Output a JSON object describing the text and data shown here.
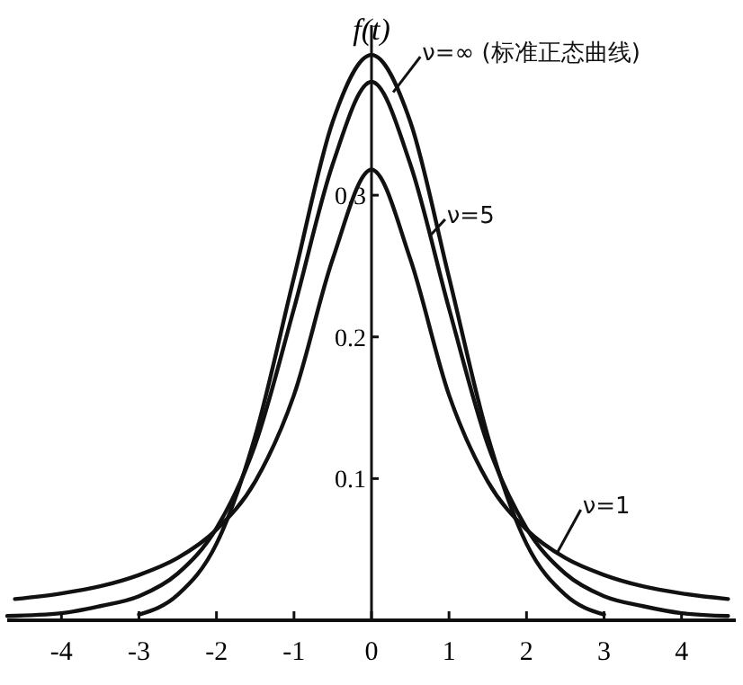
{
  "chart_data": {
    "type": "line",
    "ylabel": "f(t)",
    "xlim": [
      -4.7,
      4.7
    ],
    "ylim": [
      0,
      0.42
    ],
    "xticks": [
      -4,
      -3,
      -2,
      -1,
      0,
      1,
      2,
      3,
      4
    ],
    "yticks": [
      {
        "value": 0.1,
        "label": "0.1"
      },
      {
        "value": 0.2,
        "label": "0.2"
      },
      {
        "value": 0.3,
        "label": "0.3"
      }
    ],
    "grid": false,
    "marker": "none",
    "line_style": "solid",
    "series": [
      {
        "name": "ν=∞ (标准正态曲线)",
        "color": "#111111",
        "x": [
          -3,
          -2.5,
          -2,
          -1.5,
          -1,
          -0.5,
          0,
          0.5,
          1,
          1.5,
          2,
          2.5,
          3
        ],
        "values": [
          0.004,
          0.018,
          0.054,
          0.13,
          0.242,
          0.352,
          0.399,
          0.352,
          0.242,
          0.13,
          0.054,
          0.018,
          0.004
        ]
      },
      {
        "name": "ν=5",
        "color": "#111111",
        "x": [
          -4.7,
          -4,
          -3.5,
          -3,
          -2.5,
          -2,
          -1.5,
          -1,
          -0.5,
          0,
          0.5,
          1,
          1.5,
          2,
          2.5,
          3,
          3.5,
          4,
          4.6
        ],
        "values": [
          0.003,
          0.005,
          0.01,
          0.017,
          0.033,
          0.065,
          0.124,
          0.22,
          0.322,
          0.38,
          0.322,
          0.22,
          0.124,
          0.065,
          0.033,
          0.017,
          0.01,
          0.005,
          0.003
        ]
      },
      {
        "name": "ν=1",
        "color": "#111111",
        "x": [
          -4.6,
          -4,
          -3.5,
          -3,
          -2.5,
          -2,
          -1.5,
          -1,
          -0.5,
          0,
          0.5,
          1,
          1.5,
          2,
          2.5,
          3,
          3.5,
          4,
          4.6
        ],
        "values": [
          0.015,
          0.019,
          0.024,
          0.032,
          0.044,
          0.064,
          0.098,
          0.159,
          0.255,
          0.318,
          0.255,
          0.159,
          0.098,
          0.064,
          0.044,
          0.032,
          0.024,
          0.019,
          0.015
        ]
      }
    ]
  }
}
